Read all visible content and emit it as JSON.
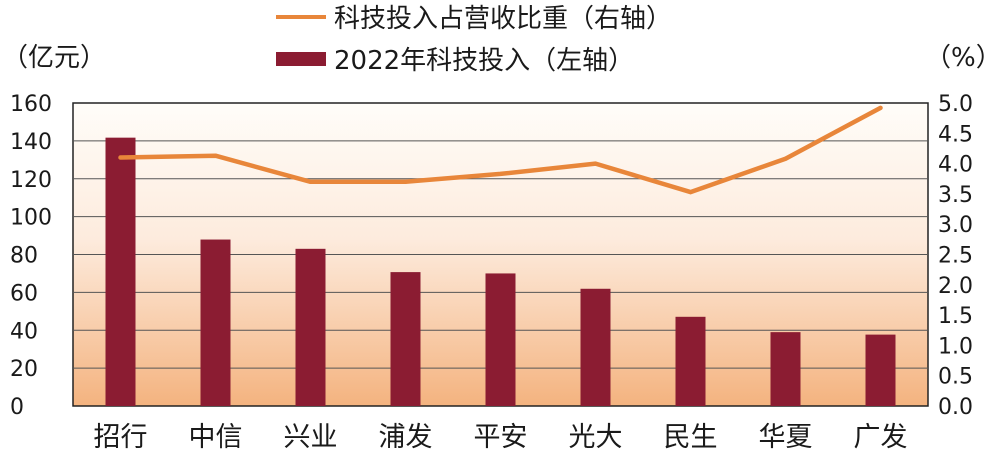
{
  "chart_data": {
    "type": "bar",
    "categories": [
      "招行",
      "中信",
      "兴业",
      "浦发",
      "平安",
      "光大",
      "民生",
      "华夏",
      "广发"
    ],
    "series": [
      {
        "name": "2022年科技投入（左轴）",
        "type": "bar",
        "axis": "left",
        "values": [
          141.7,
          87.9,
          83.0,
          70.7,
          70.0,
          61.9,
          47.1,
          39.0,
          37.7
        ],
        "color": "#8b1c32"
      },
      {
        "name": "科技投入占营收比重（右轴）",
        "type": "line",
        "axis": "right",
        "values": [
          4.1,
          4.13,
          3.7,
          3.7,
          3.83,
          4.0,
          3.53,
          4.08,
          4.92
        ],
        "color": "#e8863a"
      }
    ],
    "left_axis": {
      "unit": "（亿元）",
      "ylim": [
        0,
        160
      ],
      "ticks": [
        "0",
        "20",
        "40",
        "60",
        "80",
        "100",
        "120",
        "140",
        "160"
      ]
    },
    "right_axis": {
      "unit": "（%）",
      "ylim": [
        0,
        5
      ],
      "ticks": [
        "0.0",
        "0.5",
        "1.0",
        "1.5",
        "2.0",
        "2.5",
        "3.0",
        "3.5",
        "4.0",
        "4.5",
        "5.0"
      ]
    },
    "grid": true,
    "legend_position": "top"
  }
}
